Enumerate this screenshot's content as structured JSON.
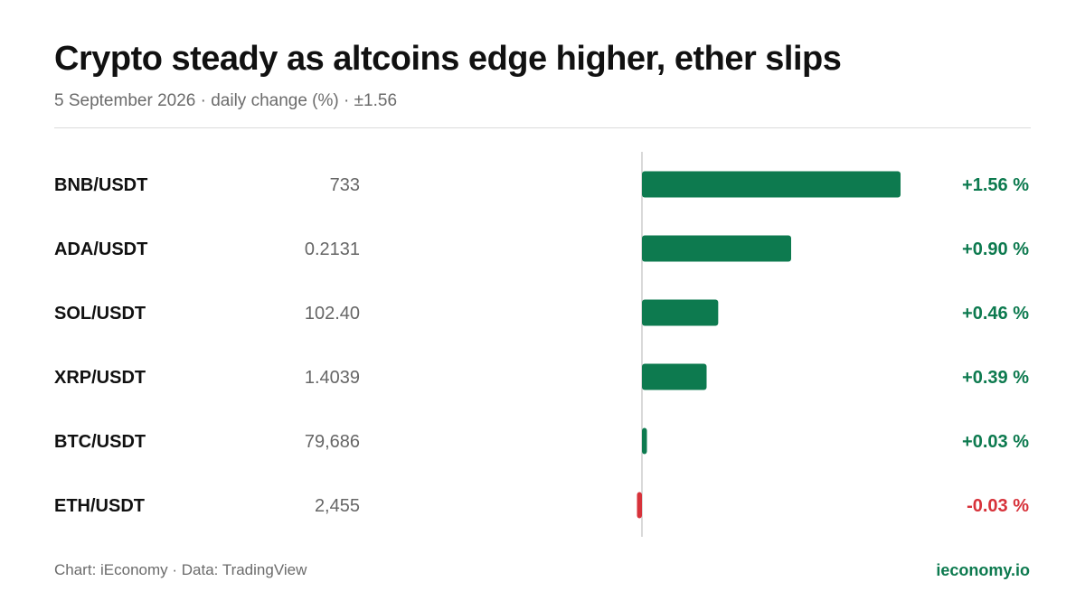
{
  "title": "Crypto steady as altcoins edge higher, ether slips",
  "subtitle": "5 September 2026 · daily change (%) · ±1.56",
  "footer": {
    "source": "Chart: iEconomy · Data: TradingView",
    "brand": "ieconomy.io"
  },
  "colors": {
    "positive": "#0d7a4f",
    "negative": "#d7323a",
    "axis": "#d9d9d9",
    "price_text": "#666666",
    "label_text": "#111111"
  },
  "chart_data": {
    "type": "bar",
    "orientation": "horizontal",
    "categories": [
      "BNB/USDT",
      "ADA/USDT",
      "SOL/USDT",
      "XRP/USDT",
      "BTC/USDT",
      "ETH/USDT"
    ],
    "prices": [
      "733",
      "0.2131",
      "102.40",
      "1.4039",
      "79,686",
      "2,455"
    ],
    "values": [
      1.56,
      0.9,
      0.46,
      0.39,
      0.03,
      -0.03
    ],
    "value_labels": [
      "+1.56 %",
      "+0.90 %",
      "+0.46 %",
      "+0.39 %",
      "+0.03 %",
      "-0.03 %"
    ],
    "title": "Crypto steady as altcoins edge higher, ether slips",
    "xlabel": "",
    "ylabel": "",
    "xlim": [
      -1.56,
      1.56
    ],
    "grid": false,
    "legend": "none"
  }
}
